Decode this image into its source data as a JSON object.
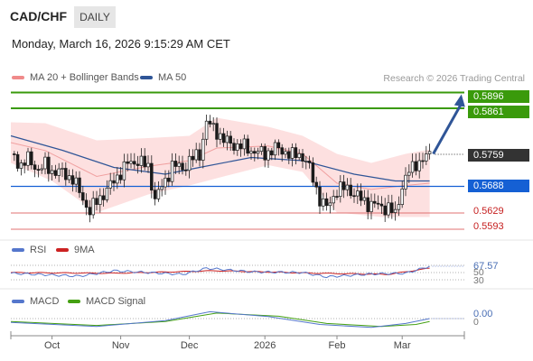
{
  "header": {
    "symbol": "CAD/CHF",
    "timeframe": "DAILY",
    "datetime": "Monday, March 16, 2026 9:15:29 AM CET"
  },
  "legend": {
    "bb_label": "MA 20 + Bollinger Bands",
    "ma50_label": "MA 50",
    "rsi_label": "RSI",
    "rsi_ma_label": "9MA",
    "macd_label": "MACD",
    "macd_signal_label": "MACD Signal"
  },
  "credit": "Research © 2026 Trading Central",
  "colors": {
    "bullish": "#3a9a0b",
    "support": "#1560d4",
    "resistance": "#d83434",
    "bb": "#f08a8a",
    "ma50": "#2f5597",
    "last": "#333333"
  },
  "levels": {
    "resistance_2": "0.5896",
    "resistance_1": "0.5861",
    "last_price": "0.5759",
    "pivot": "0.5688",
    "support_1": "0.5629",
    "support_2": "0.5593"
  },
  "indicators": {
    "rsi_value": "67.57",
    "rsi_70": "70",
    "rsi_50": "50",
    "rsi_30": "30",
    "macd_value": "0.00",
    "macd_zero": "0"
  },
  "chart_data": {
    "type": "candlestick",
    "instrument": "CAD/CHF",
    "timeframe": "daily",
    "x_labels": [
      "Oct",
      "Nov",
      "Dec",
      "2026",
      "Feb",
      "Mar"
    ],
    "ylim": [
      0.5585,
      0.5905
    ],
    "horizontal_levels": [
      0.5896,
      0.5861,
      0.5688,
      0.5629,
      0.5593
    ],
    "last_price": 0.5759,
    "close_path": [
      [
        0,
        0.576
      ],
      [
        3,
        0.5735
      ],
      [
        5,
        0.5748
      ],
      [
        8,
        0.5725
      ],
      [
        10,
        0.5735
      ],
      [
        12,
        0.5722
      ],
      [
        15,
        0.5718
      ],
      [
        18,
        0.5705
      ],
      [
        21,
        0.566
      ],
      [
        23,
        0.5632
      ],
      [
        25,
        0.5655
      ],
      [
        28,
        0.568
      ],
      [
        31,
        0.571
      ],
      [
        34,
        0.5738
      ],
      [
        37,
        0.5745
      ],
      [
        40,
        0.573
      ],
      [
        42,
        0.566
      ],
      [
        45,
        0.57
      ],
      [
        47,
        0.5735
      ],
      [
        50,
        0.5728
      ],
      [
        52,
        0.5745
      ],
      [
        55,
        0.576
      ],
      [
        57,
        0.583
      ],
      [
        60,
        0.581
      ],
      [
        62,
        0.579
      ],
      [
        65,
        0.578
      ],
      [
        68,
        0.5775
      ],
      [
        71,
        0.5765
      ],
      [
        74,
        0.576
      ],
      [
        77,
        0.5772
      ],
      [
        80,
        0.5765
      ],
      [
        82,
        0.5755
      ],
      [
        84,
        0.576
      ],
      [
        86,
        0.5745
      ],
      [
        88,
        0.5705
      ],
      [
        90,
        0.566
      ],
      [
        92,
        0.564
      ],
      [
        95,
        0.568
      ],
      [
        98,
        0.5685
      ],
      [
        101,
        0.5665
      ],
      [
        104,
        0.565
      ],
      [
        107,
        0.5645
      ],
      [
        110,
        0.564
      ],
      [
        112,
        0.5625
      ],
      [
        114,
        0.569
      ],
      [
        116,
        0.572
      ],
      [
        118,
        0.574
      ],
      [
        120,
        0.5745
      ],
      [
        122,
        0.576
      ]
    ],
    "bb_path": {
      "upper": [
        [
          0,
          0.583
        ],
        [
          10,
          0.5828
        ],
        [
          25,
          0.579
        ],
        [
          40,
          0.5795
        ],
        [
          52,
          0.58
        ],
        [
          60,
          0.584
        ],
        [
          75,
          0.582
        ],
        [
          85,
          0.58
        ],
        [
          95,
          0.576
        ],
        [
          105,
          0.574
        ],
        [
          115,
          0.576
        ],
        [
          122,
          0.577
        ]
      ],
      "lower": [
        [
          0,
          0.574
        ],
        [
          12,
          0.57
        ],
        [
          25,
          0.563
        ],
        [
          40,
          0.567
        ],
        [
          52,
          0.569
        ],
        [
          62,
          0.571
        ],
        [
          75,
          0.5735
        ],
        [
          85,
          0.572
        ],
        [
          95,
          0.563
        ],
        [
          108,
          0.562
        ],
        [
          115,
          0.562
        ],
        [
          122,
          0.562
        ]
      ]
    },
    "ma50_path": [
      [
        0,
        0.58
      ],
      [
        15,
        0.5768
      ],
      [
        30,
        0.573
      ],
      [
        45,
        0.5715
      ],
      [
        55,
        0.573
      ],
      [
        70,
        0.5752
      ],
      [
        85,
        0.5745
      ],
      [
        100,
        0.5715
      ],
      [
        112,
        0.57
      ],
      [
        122,
        0.57
      ]
    ],
    "projection": {
      "from": [
        122,
        0.576
      ],
      "to": [
        131,
        0.588
      ]
    },
    "rsi": {
      "levels": [
        70,
        50,
        30
      ],
      "rsi": [
        [
          0,
          48
        ],
        [
          20,
          40
        ],
        [
          30,
          55
        ],
        [
          50,
          45
        ],
        [
          57,
          62
        ],
        [
          70,
          52
        ],
        [
          85,
          50
        ],
        [
          92,
          38
        ],
        [
          105,
          46
        ],
        [
          115,
          48
        ],
        [
          122,
          67.57
        ]
      ],
      "ma9": [
        [
          0,
          50
        ],
        [
          30,
          48
        ],
        [
          60,
          55
        ],
        [
          90,
          48
        ],
        [
          110,
          45
        ],
        [
          122,
          62
        ]
      ],
      "last": 67.57
    },
    "macd": {
      "zero_line": 0,
      "macd": [
        [
          0,
          -0.002
        ],
        [
          25,
          -0.004
        ],
        [
          45,
          -0.001
        ],
        [
          58,
          0.0035
        ],
        [
          75,
          0.001
        ],
        [
          90,
          -0.003
        ],
        [
          105,
          -0.0045
        ],
        [
          115,
          -0.0025
        ],
        [
          122,
          0.0
        ]
      ],
      "signal": [
        [
          0,
          -0.0015
        ],
        [
          25,
          -0.0035
        ],
        [
          45,
          -0.0015
        ],
        [
          60,
          0.0028
        ],
        [
          78,
          0.0012
        ],
        [
          92,
          -0.0025
        ],
        [
          108,
          -0.004
        ],
        [
          118,
          -0.003
        ],
        [
          122,
          -0.0015
        ]
      ],
      "last": 0.0
    }
  }
}
